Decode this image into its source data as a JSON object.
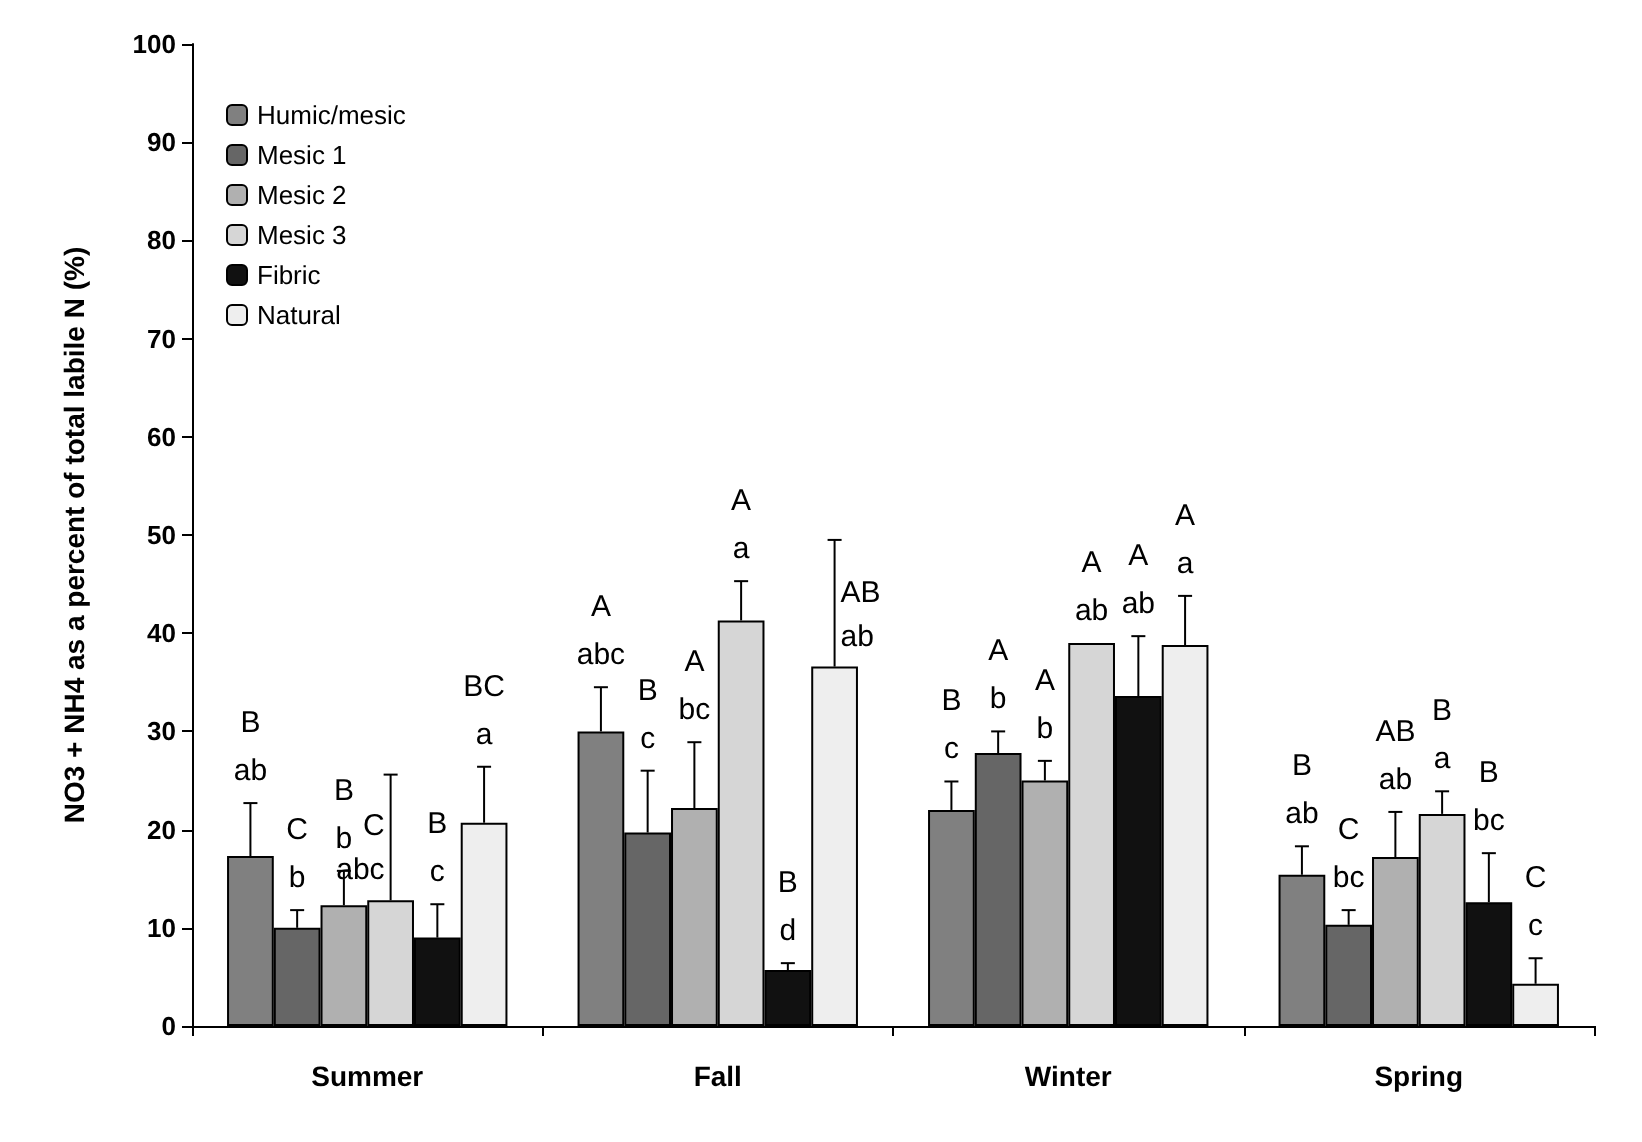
{
  "chart_data": {
    "type": "bar",
    "ylabel": "NO3 + NH4 as a percent of total labile N (%)",
    "categories": [
      "Summer",
      "Fall",
      "Winter",
      "Spring"
    ],
    "ylim": [
      0,
      100
    ],
    "yticks": [
      0,
      10,
      20,
      30,
      40,
      50,
      60,
      70,
      80,
      90,
      100
    ],
    "grid": false,
    "legend": "top left",
    "series": [
      {
        "name": "Humic/mesic",
        "color": "#808080",
        "values": [
          17.3,
          30,
          22,
          15.4
        ],
        "errors": [
          [
            17.3,
            22.7
          ],
          [
            30,
            34.5
          ],
          [
            22,
            24.9
          ],
          [
            15.4,
            18.3
          ]
        ],
        "value_labels": [
          "B\nab",
          "A\nabc",
          "B\nc",
          "B\nab"
        ]
      },
      {
        "name": "Mesic 1",
        "color": "#666666",
        "values": [
          10,
          19.7,
          27.8,
          10.3
        ],
        "errors": [
          [
            10,
            11.8
          ],
          [
            19.7,
            26
          ],
          [
            27.8,
            30
          ],
          [
            10.3,
            11.8
          ]
        ],
        "value_labels": [
          "C\nb",
          "B\nc",
          "A\nb",
          "C\nbc"
        ]
      },
      {
        "name": "Mesic 2",
        "color": "#b0b0b0",
        "values": [
          12.3,
          22.2,
          25,
          17.2
        ],
        "errors": [
          [
            12.3,
            15.8
          ],
          [
            22.2,
            28.9
          ],
          [
            25,
            27
          ],
          [
            17.2,
            21.8
          ]
        ],
        "value_labels": [
          "B\nb",
          "A\nbc",
          "A\nb",
          "AB\nab"
        ]
      },
      {
        "name": "Mesic 3",
        "color": "#d6d6d6",
        "values": [
          12.8,
          41.3,
          39,
          21.6
        ],
        "errors": [
          [
            12.8,
            25.6
          ],
          [
            41.3,
            45.3
          ],
          null,
          [
            21.6,
            23.9
          ]
        ],
        "value_labels": [
          "C\nabc",
          "A\na",
          "A\nab",
          "B\na"
        ]
      },
      {
        "name": "Fibric",
        "color": "#111111",
        "values": [
          9,
          5.7,
          33.6,
          12.6
        ],
        "errors": [
          [
            9,
            12.4
          ],
          [
            5.7,
            6.4
          ],
          [
            33.6,
            39.7
          ],
          [
            12.6,
            17.6
          ]
        ],
        "value_labels": [
          "B\nc",
          "B\nd",
          "A\nab",
          "B\nbc"
        ]
      },
      {
        "name": "Natural",
        "color": "#eeeeee",
        "values": [
          20.7,
          36.6,
          38.8,
          4.3
        ],
        "errors": [
          [
            20.7,
            26.4
          ],
          [
            36.6,
            49.5
          ],
          [
            38.8,
            43.8
          ],
          [
            4.3,
            6.9
          ]
        ],
        "value_labels": [
          "BC\na",
          "AB\nab",
          "A\na",
          "C\nc"
        ]
      }
    ]
  }
}
